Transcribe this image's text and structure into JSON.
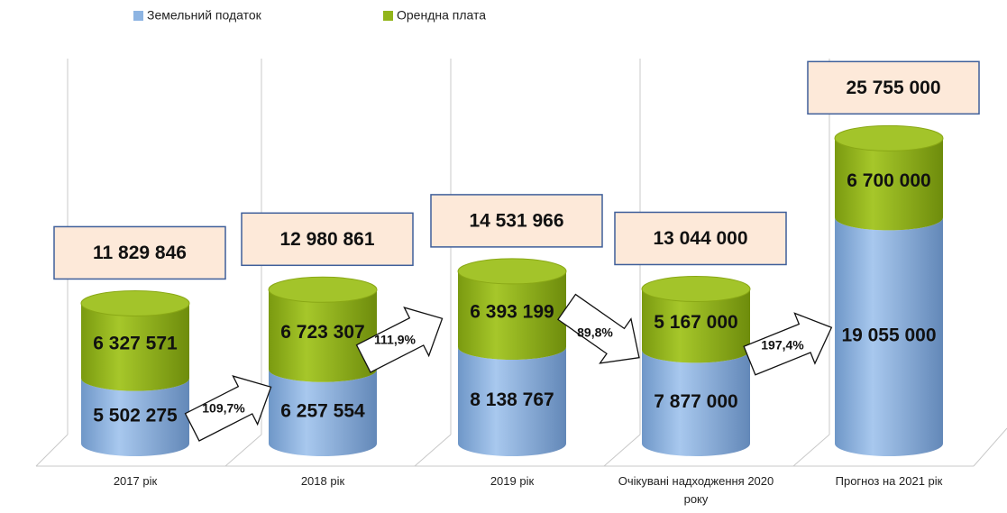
{
  "chart_data": {
    "type": "stacked-cylinder",
    "categories": [
      "2017 рік",
      "2018 рік",
      "2019 рік",
      "Очікувані надходження 2020 року",
      "Прогноз на 2021 рік"
    ],
    "series": [
      {
        "name": "Земельний податок",
        "color": "#8db4e2",
        "values": [
          5502275,
          6257554,
          8138767,
          7877000,
          19055000
        ],
        "value_labels": [
          "5 502 275",
          "6 257 554",
          "8 138 767",
          "7 877 000",
          "19 055 000"
        ]
      },
      {
        "name": "Орендна плата",
        "color": "#92b51a",
        "values": [
          6327571,
          6723307,
          6393199,
          5167000,
          6700000
        ],
        "value_labels": [
          "6 327 571",
          "6 723 307",
          "6 393 199",
          "5 167 000",
          "6 700 000"
        ]
      }
    ],
    "totals": [
      11829846,
      12980861,
      14531966,
      13044000,
      25755000
    ],
    "total_labels": [
      "11 829 846",
      "12 980 861",
      "14 531 966",
      "13 044 000",
      "25 755 000"
    ],
    "changes": [
      109.7,
      111.9,
      89.8,
      197.4
    ],
    "change_labels": [
      "109,7%",
      "111,9%",
      "89,8%",
      "197,4%"
    ]
  }
}
